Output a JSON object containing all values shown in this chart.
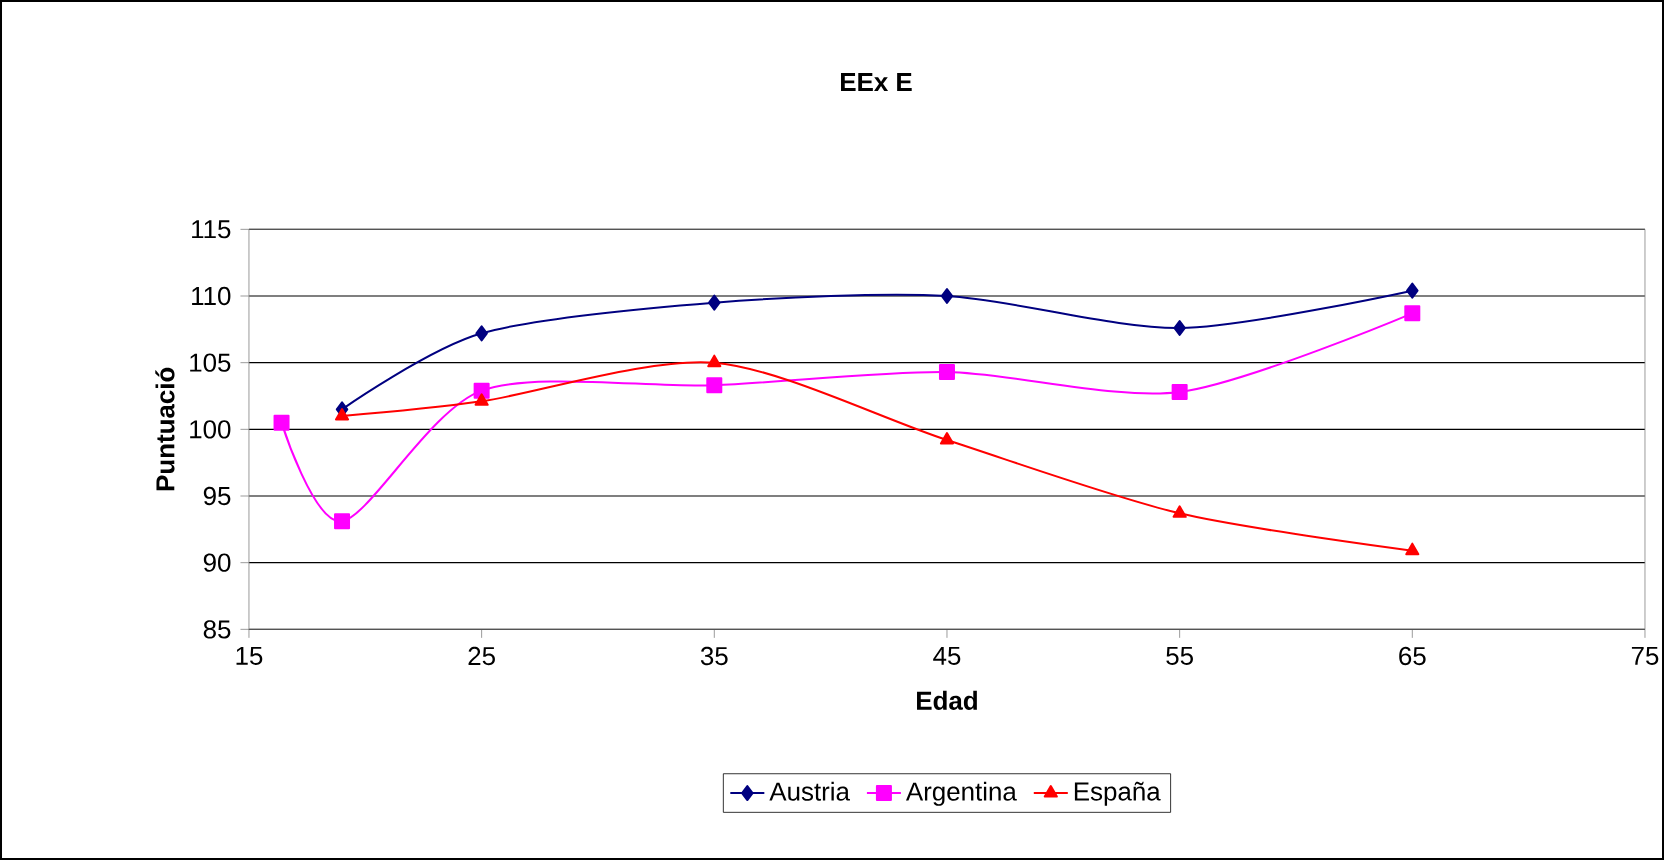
{
  "chart_data": {
    "type": "line",
    "title": "EEx E",
    "xlabel": "Edad",
    "ylabel": "Puntuació",
    "xlim": [
      15,
      75
    ],
    "xticks": [
      15,
      25,
      35,
      45,
      55,
      65,
      75
    ],
    "ylim": [
      85,
      115
    ],
    "yticks": [
      85,
      90,
      95,
      100,
      105,
      110,
      115
    ],
    "grid": "y",
    "legend": "bottom",
    "line_style": "solid",
    "series": [
      {
        "name": "Austria",
        "color": "#000080",
        "marker": "diamond",
        "x": [
          19,
          25,
          35,
          45,
          55,
          65
        ],
        "values": [
          101.5,
          107.2,
          109.5,
          110,
          107.6,
          110.4
        ]
      },
      {
        "name": "Argentina",
        "color": "#ff00ff",
        "marker": "square",
        "x": [
          16.4,
          19,
          25,
          35,
          45,
          55,
          65
        ],
        "values": [
          100.5,
          93.1,
          102.9,
          103.3,
          104.3,
          102.8,
          108.7
        ]
      },
      {
        "name": "España",
        "color": "#ff0000",
        "marker": "triangle",
        "x": [
          19,
          25,
          35,
          45,
          55,
          65
        ],
        "values": [
          101,
          102.1,
          105,
          99.2,
          93.7,
          90.9
        ]
      }
    ]
  }
}
